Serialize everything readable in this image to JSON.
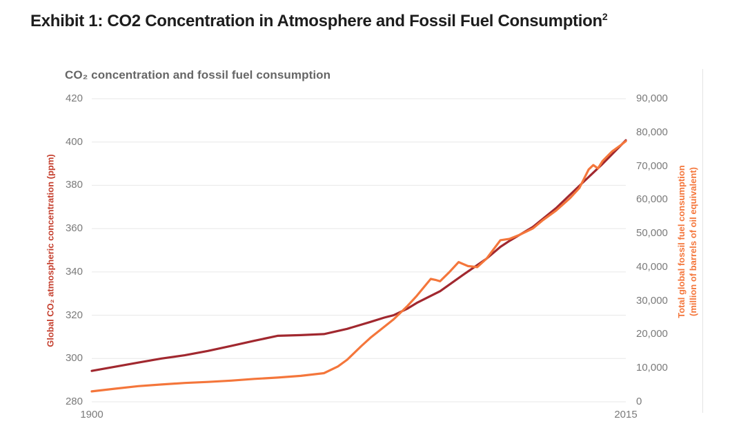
{
  "page": {
    "title": "Exhibit 1: CO2 Concentration in Atmosphere and Fossil Fuel Consumption",
    "title_superscript": "2"
  },
  "chart_data": {
    "type": "line",
    "title": "CO₂ concentration and fossil fuel consumption",
    "legend": "none",
    "grid": "horizontal gridlines at left-axis tick values, light gray",
    "background": "#ffffff",
    "gridline_color": "#e7e7e7",
    "tick_label_color": "#7a7a7a",
    "title_color": "#666666",
    "x_axis": {
      "range": [
        1900,
        2015
      ],
      "tick_values": [
        1900,
        2015
      ],
      "tick_labels": [
        "1900",
        "2015"
      ]
    },
    "y_left": {
      "label": "Global CO₂ atmospheric concentration (ppm)",
      "label_color": "#c5402f",
      "range": [
        280,
        420
      ],
      "tick_values": [
        420,
        400,
        380,
        360,
        340,
        320,
        300,
        280
      ],
      "tick_labels": [
        "420",
        "400",
        "380",
        "360",
        "340",
        "320",
        "300",
        "280"
      ]
    },
    "y_right": {
      "label_line1": "Total global fossil fuel consumption",
      "label_line2": "(million of barrels of oil equivalent)",
      "label_color": "#f4763b",
      "range": [
        0,
        90000
      ],
      "tick_values": [
        90000,
        80000,
        70000,
        60000,
        50000,
        40000,
        30000,
        20000,
        10000,
        0
      ],
      "tick_labels": [
        "90,000",
        "80,000",
        "70,000",
        "60,000",
        "50,000",
        "40,000",
        "30,000",
        "20,000",
        "10,000",
        "0"
      ]
    },
    "series": [
      {
        "name": "Global CO₂ atmospheric concentration (ppm)",
        "axis": "left",
        "color": "#a1282f",
        "points": [
          [
            1900,
            294.3
          ],
          [
            1905,
            296.2
          ],
          [
            1910,
            298.1
          ],
          [
            1915,
            300.0
          ],
          [
            1920,
            301.5
          ],
          [
            1925,
            303.5
          ],
          [
            1930,
            305.8
          ],
          [
            1935,
            308.2
          ],
          [
            1940,
            310.5
          ],
          [
            1945,
            310.8
          ],
          [
            1950,
            311.3
          ],
          [
            1955,
            313.7
          ],
          [
            1960,
            316.9
          ],
          [
            1963,
            318.9
          ],
          [
            1965,
            320.0
          ],
          [
            1968,
            323.1
          ],
          [
            1970,
            325.7
          ],
          [
            1975,
            331.1
          ],
          [
            1980,
            338.7
          ],
          [
            1985,
            346.1
          ],
          [
            1988,
            351.6
          ],
          [
            1990,
            354.4
          ],
          [
            1995,
            360.8
          ],
          [
            2000,
            369.5
          ],
          [
            2005,
            379.8
          ],
          [
            2010,
            389.9
          ],
          [
            2015,
            400.8
          ]
        ]
      },
      {
        "name": "Total global fossil fuel consumption (million of barrels of oil equivalent)",
        "axis": "right",
        "color": "#f4763b",
        "points": [
          [
            1900,
            3100
          ],
          [
            1905,
            3900
          ],
          [
            1910,
            4650
          ],
          [
            1915,
            5150
          ],
          [
            1920,
            5600
          ],
          [
            1925,
            5900
          ],
          [
            1930,
            6300
          ],
          [
            1935,
            6800
          ],
          [
            1940,
            7200
          ],
          [
            1945,
            7700
          ],
          [
            1950,
            8500
          ],
          [
            1953,
            10500
          ],
          [
            1955,
            12500
          ],
          [
            1958,
            16500
          ],
          [
            1960,
            19000
          ],
          [
            1963,
            22300
          ],
          [
            1965,
            24500
          ],
          [
            1968,
            28500
          ],
          [
            1970,
            31500
          ],
          [
            1973,
            36500
          ],
          [
            1974,
            36200
          ],
          [
            1975,
            35800
          ],
          [
            1977,
            38500
          ],
          [
            1979,
            41500
          ],
          [
            1981,
            40300
          ],
          [
            1983,
            40000
          ],
          [
            1985,
            42500
          ],
          [
            1988,
            48000
          ],
          [
            1990,
            48400
          ],
          [
            1992,
            49500
          ],
          [
            1995,
            51500
          ],
          [
            1997,
            53800
          ],
          [
            2000,
            56800
          ],
          [
            2003,
            60500
          ],
          [
            2005,
            63500
          ],
          [
            2007,
            69000
          ],
          [
            2008,
            70300
          ],
          [
            2009,
            69300
          ],
          [
            2010,
            71500
          ],
          [
            2012,
            74300
          ],
          [
            2014,
            76300
          ],
          [
            2015,
            77400
          ]
        ]
      }
    ]
  }
}
